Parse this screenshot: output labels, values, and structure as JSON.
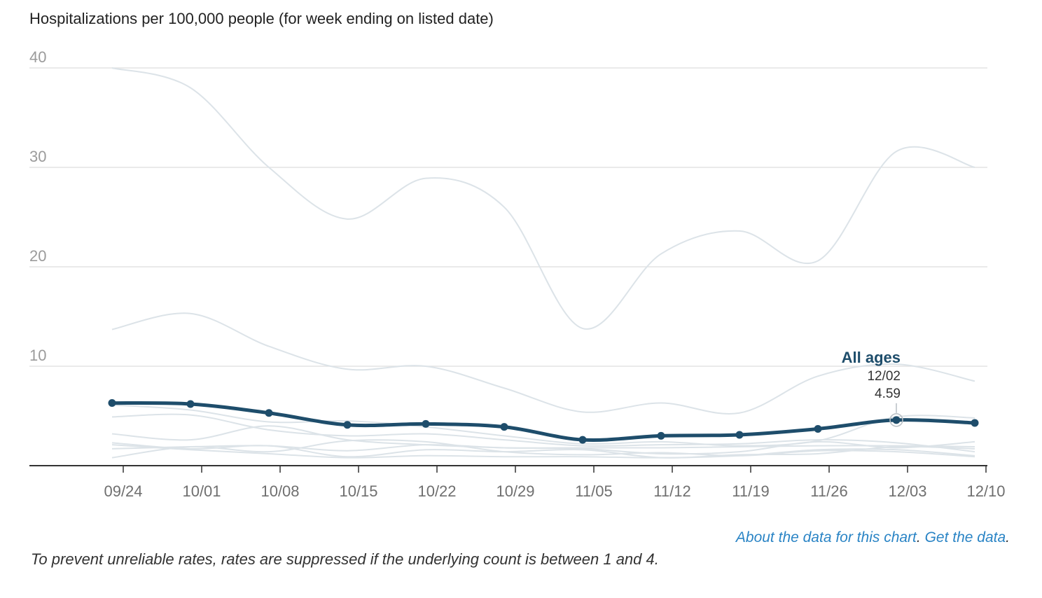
{
  "title": "Hospitalizations per 100,000 people (for week ending on listed date)",
  "links": {
    "about": "About the data for this chart",
    "sep": ". ",
    "get": "Get the data",
    "end": "."
  },
  "footnote": "To prevent unreliable rates, rates are suppressed if the underlying count is between 1 and 4.",
  "colors": {
    "highlight": "#1e4d6b",
    "background_series": "#dce3e8",
    "grid": "#e3e3e3",
    "axis": "#333333"
  },
  "chart_data": {
    "type": "line",
    "title": "Hospitalizations per 100,000 people (for week ending on listed date)",
    "xlabel": "",
    "ylabel": "",
    "ylim": [
      0,
      40
    ],
    "yticks": [
      10,
      20,
      30,
      40
    ],
    "x_tick_labels": [
      "09/24",
      "10/01",
      "10/08",
      "10/15",
      "10/22",
      "10/29",
      "11/05",
      "11/12",
      "11/19",
      "11/26",
      "12/03",
      "12/10"
    ],
    "x": [
      "09/23",
      "09/30",
      "10/07",
      "10/14",
      "10/21",
      "10/28",
      "11/04",
      "11/11",
      "11/18",
      "11/25",
      "12/02",
      "12/09"
    ],
    "grid": true,
    "highlight_series": "All ages",
    "annotation": {
      "series": "All ages",
      "date": "12/02",
      "value": "4.59"
    },
    "series": [
      {
        "name": "All ages",
        "highlight": true,
        "values": [
          6.3,
          6.2,
          5.3,
          4.1,
          4.2,
          3.9,
          2.6,
          3.0,
          3.1,
          3.7,
          4.59,
          4.3
        ]
      },
      {
        "values": [
          40.0,
          38.0,
          30.0,
          24.8,
          28.9,
          26.0,
          13.8,
          21.3,
          23.6,
          20.6,
          31.6,
          30.0
        ]
      },
      {
        "values": [
          13.7,
          15.3,
          12.0,
          9.7,
          10.0,
          7.8,
          5.4,
          6.3,
          5.3,
          9.0,
          10.2,
          8.5
        ]
      },
      {
        "values": [
          6.1,
          5.6,
          4.4,
          4.5,
          3.9,
          3.0,
          2.2,
          2.4,
          2.0,
          2.5,
          4.9,
          4.8
        ]
      },
      {
        "values": [
          4.9,
          5.1,
          3.6,
          3.0,
          3.2,
          2.6,
          2.0,
          2.1,
          2.2,
          2.6,
          2.3,
          1.4
        ]
      },
      {
        "values": [
          3.2,
          2.6,
          4.0,
          2.6,
          2.1,
          1.8,
          1.7,
          1.2,
          1.4,
          2.4,
          1.8,
          2.4
        ]
      },
      {
        "values": [
          2.3,
          1.7,
          2.0,
          0.9,
          1.6,
          1.4,
          1.6,
          0.8,
          1.1,
          1.2,
          1.9,
          1.7
        ]
      },
      {
        "values": [
          2.1,
          1.6,
          1.2,
          0.8,
          1.0,
          0.9,
          0.9,
          0.8,
          1.0,
          1.6,
          1.6,
          1.0
        ]
      },
      {
        "values": [
          0.8,
          1.9,
          1.4,
          2.5,
          2.4,
          1.4,
          1.1,
          1.3,
          1.0,
          1.5,
          1.4,
          0.9
        ]
      },
      {
        "values": [
          1.7,
          1.9,
          2.0,
          1.5,
          2.1,
          1.8,
          1.8,
          1.8,
          1.9,
          2.0,
          2.0,
          1.9
        ]
      }
    ]
  }
}
